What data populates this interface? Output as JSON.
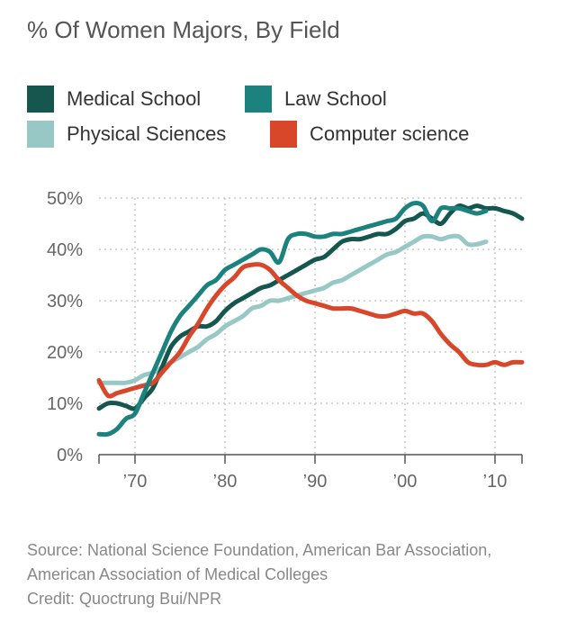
{
  "chart_data": {
    "type": "line",
    "title": "% Of Women Majors, By Field",
    "xlabel": "",
    "ylabel": "",
    "xlim": [
      1966,
      2013
    ],
    "ylim": [
      0,
      50
    ],
    "y_ticks": [
      0,
      10,
      20,
      30,
      40,
      50
    ],
    "y_tick_labels": [
      "0%",
      "10%",
      "20%",
      "30%",
      "40%",
      "50%"
    ],
    "x_ticks": [
      1970,
      1980,
      1990,
      2000,
      2010
    ],
    "x_tick_labels": [
      "’70",
      "’80",
      "’90",
      "’00",
      "’10"
    ],
    "grid": true,
    "legend_position": "top",
    "series": [
      {
        "name": "Medical School",
        "color": "#15564f",
        "x": [
          1966,
          1967,
          1968,
          1969,
          1970,
          1971,
          1972,
          1973,
          1974,
          1975,
          1976,
          1977,
          1978,
          1979,
          1980,
          1981,
          1982,
          1983,
          1984,
          1985,
          1986,
          1987,
          1988,
          1989,
          1990,
          1991,
          1992,
          1993,
          1994,
          1995,
          1996,
          1997,
          1998,
          1999,
          2000,
          2001,
          2002,
          2003,
          2004,
          2005,
          2006,
          2007,
          2008,
          2009,
          2010,
          2011,
          2012,
          2013
        ],
        "y": [
          9,
          10,
          10,
          9.5,
          9,
          11,
          13,
          17,
          21,
          23,
          24,
          25,
          25,
          26,
          28,
          29.5,
          30.5,
          31.5,
          32.5,
          33,
          34,
          35,
          36,
          37,
          38,
          38.5,
          40,
          41.5,
          42,
          42,
          42.5,
          43,
          43,
          44,
          45.5,
          46,
          47,
          46,
          45,
          47,
          48.5,
          48,
          48.5,
          48,
          48,
          47.5,
          47,
          46
        ]
      },
      {
        "name": "Law School",
        "color": "#1c827d",
        "x": [
          1966,
          1967,
          1968,
          1969,
          1970,
          1971,
          1972,
          1973,
          1974,
          1975,
          1976,
          1977,
          1978,
          1979,
          1980,
          1981,
          1982,
          1983,
          1984,
          1985,
          1986,
          1987,
          1988,
          1989,
          1990,
          1991,
          1992,
          1993,
          1994,
          1995,
          1996,
          1997,
          1998,
          1999,
          2000,
          2001,
          2002,
          2003,
          2004,
          2005,
          2006,
          2007,
          2008,
          2009
        ],
        "y": [
          4,
          4,
          5,
          7,
          8,
          12,
          16,
          20,
          24,
          27,
          29,
          31,
          33,
          34,
          36,
          37,
          38,
          39,
          40,
          39.5,
          37.5,
          42,
          43,
          43,
          42.5,
          42.5,
          43,
          43,
          43.5,
          44,
          44.5,
          45,
          45.5,
          46,
          48,
          49,
          48.5,
          45.5,
          48,
          48,
          48,
          47.5,
          47,
          47.5
        ]
      },
      {
        "name": "Physical Sciences",
        "color": "#98c8c6",
        "x": [
          1966,
          1967,
          1968,
          1969,
          1970,
          1971,
          1972,
          1973,
          1974,
          1975,
          1976,
          1977,
          1978,
          1979,
          1980,
          1981,
          1982,
          1983,
          1984,
          1985,
          1986,
          1987,
          1988,
          1989,
          1990,
          1991,
          1992,
          1993,
          1994,
          1995,
          1996,
          1997,
          1998,
          1999,
          2000,
          2001,
          2002,
          2003,
          2004,
          2005,
          2006,
          2007,
          2008,
          2009
        ],
        "y": [
          14,
          14,
          14,
          14,
          14.5,
          15.5,
          16,
          17,
          18,
          19,
          20,
          21,
          22.5,
          23.5,
          25,
          26,
          27,
          28.5,
          29,
          30,
          30,
          30.5,
          31,
          31.5,
          32,
          32.5,
          33.5,
          34,
          35,
          36,
          37,
          38,
          39,
          39.5,
          40.5,
          41.5,
          42.5,
          42.5,
          42,
          42.5,
          42.5,
          41,
          41,
          41.5
        ]
      },
      {
        "name": "Computer science",
        "color": "#d9472b",
        "x": [
          1966,
          1967,
          1968,
          1969,
          1970,
          1971,
          1972,
          1973,
          1974,
          1975,
          1976,
          1977,
          1978,
          1979,
          1980,
          1981,
          1982,
          1983,
          1984,
          1985,
          1986,
          1987,
          1988,
          1989,
          1990,
          1991,
          1992,
          1993,
          1994,
          1995,
          1996,
          1997,
          1998,
          1999,
          2000,
          2001,
          2002,
          2003,
          2004,
          2005,
          2006,
          2007,
          2008,
          2009,
          2010,
          2011,
          2012,
          2013
        ],
        "y": [
          14.5,
          11.5,
          12,
          12.5,
          13,
          13.5,
          14,
          16,
          18,
          20,
          23,
          25.5,
          28.5,
          31,
          33,
          34.5,
          36.5,
          37,
          37,
          36,
          34,
          32.5,
          31,
          30,
          29.5,
          29,
          28.5,
          28.5,
          28.5,
          28,
          27.5,
          27,
          27,
          27.5,
          28,
          27.5,
          27.5,
          26,
          23.5,
          21.5,
          20,
          18,
          17.5,
          17.5,
          18,
          17.5,
          18,
          18
        ]
      }
    ],
    "source": "Source: National Science Foundation, American Bar Association, American Association of Medical Colleges",
    "credit": "Credit: Quoctrung Bui/NPR"
  }
}
